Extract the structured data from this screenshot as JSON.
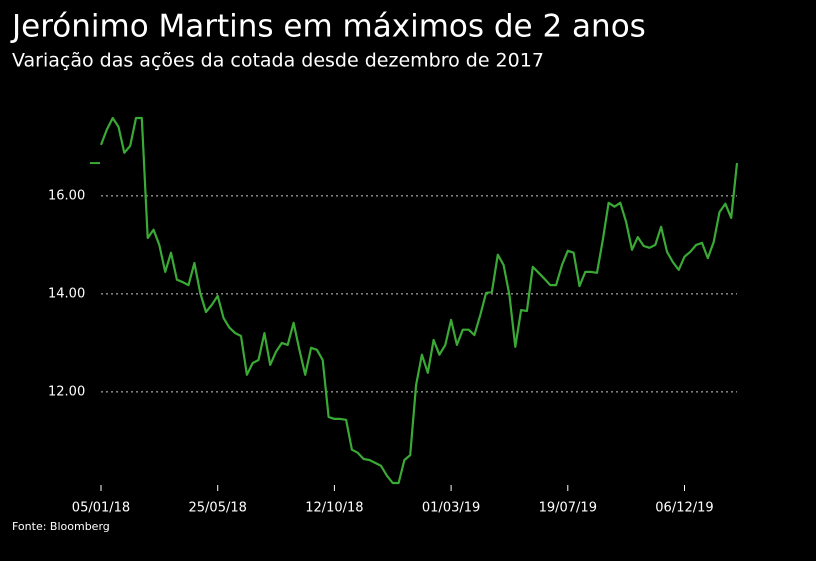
{
  "chart_data": {
    "type": "line",
    "title": "Jerónimo Martins em máximos de 2 anos",
    "subtitle": "Variação das ações da cotada desde dezembro de 2017",
    "source": "Fonte: Bloomberg",
    "categories": [
      "05/01/18",
      null,
      null,
      null,
      null,
      null,
      null,
      null,
      null,
      null,
      null,
      null,
      null,
      null,
      null,
      null,
      null,
      null,
      null,
      null,
      "25/05/18",
      null,
      null,
      null,
      null,
      null,
      null,
      null,
      null,
      null,
      null,
      null,
      null,
      null,
      null,
      null,
      null,
      null,
      null,
      null,
      "12/10/18",
      null,
      null,
      null,
      null,
      null,
      null,
      null,
      null,
      null,
      null,
      null,
      null,
      null,
      null,
      null,
      null,
      null,
      null,
      null,
      "01/03/19",
      null,
      null,
      null,
      null,
      null,
      null,
      null,
      null,
      null,
      null,
      null,
      null,
      null,
      null,
      null,
      null,
      null,
      null,
      null,
      "19/07/19",
      null,
      null,
      null,
      null,
      null,
      null,
      null,
      null,
      null,
      null,
      null,
      null,
      null,
      null,
      null,
      null,
      null,
      null,
      null,
      "06/12/19",
      null,
      null,
      null,
      null,
      null,
      null,
      null,
      null,
      null
    ],
    "series": [
      {
        "name": "Jerónimo Martins",
        "color": "#3aa935",
        "values": [
          17.04,
          17.35,
          17.59,
          17.41,
          16.88,
          17.02,
          17.59,
          17.59,
          15.14,
          15.31,
          15.0,
          14.45,
          14.84,
          14.29,
          14.24,
          14.18,
          14.63,
          14.02,
          13.63,
          13.78,
          13.96,
          13.51,
          13.31,
          13.2,
          13.14,
          12.35,
          12.59,
          12.65,
          13.2,
          12.55,
          12.82,
          13.0,
          12.96,
          13.41,
          12.86,
          12.35,
          12.9,
          12.86,
          12.65,
          11.49,
          11.45,
          11.45,
          11.43,
          10.82,
          10.76,
          10.63,
          10.61,
          10.55,
          10.49,
          10.29,
          10.14,
          10.14,
          10.61,
          10.71,
          12.14,
          12.76,
          12.39,
          13.06,
          12.76,
          12.96,
          13.47,
          12.96,
          13.27,
          13.27,
          13.16,
          13.57,
          14.02,
          14.04,
          14.8,
          14.59,
          13.98,
          12.92,
          13.67,
          13.65,
          14.55,
          14.43,
          14.31,
          14.18,
          14.18,
          14.59,
          14.88,
          14.84,
          14.16,
          14.45,
          14.45,
          14.43,
          15.1,
          15.86,
          15.78,
          15.86,
          15.47,
          14.9,
          15.16,
          14.98,
          14.94,
          15.0,
          15.37,
          14.86,
          14.65,
          14.49,
          14.76,
          14.86,
          15.0,
          15.04,
          14.73,
          15.06,
          15.67,
          15.84,
          15.55,
          16.67
        ]
      }
    ],
    "ylim": [
      10.1,
      17.8
    ],
    "yticks": [
      {
        "value": 12,
        "label": "12.00"
      },
      {
        "value": 14,
        "label": "14.00"
      },
      {
        "value": 16,
        "label": "16.00"
      }
    ],
    "grid": true
  }
}
